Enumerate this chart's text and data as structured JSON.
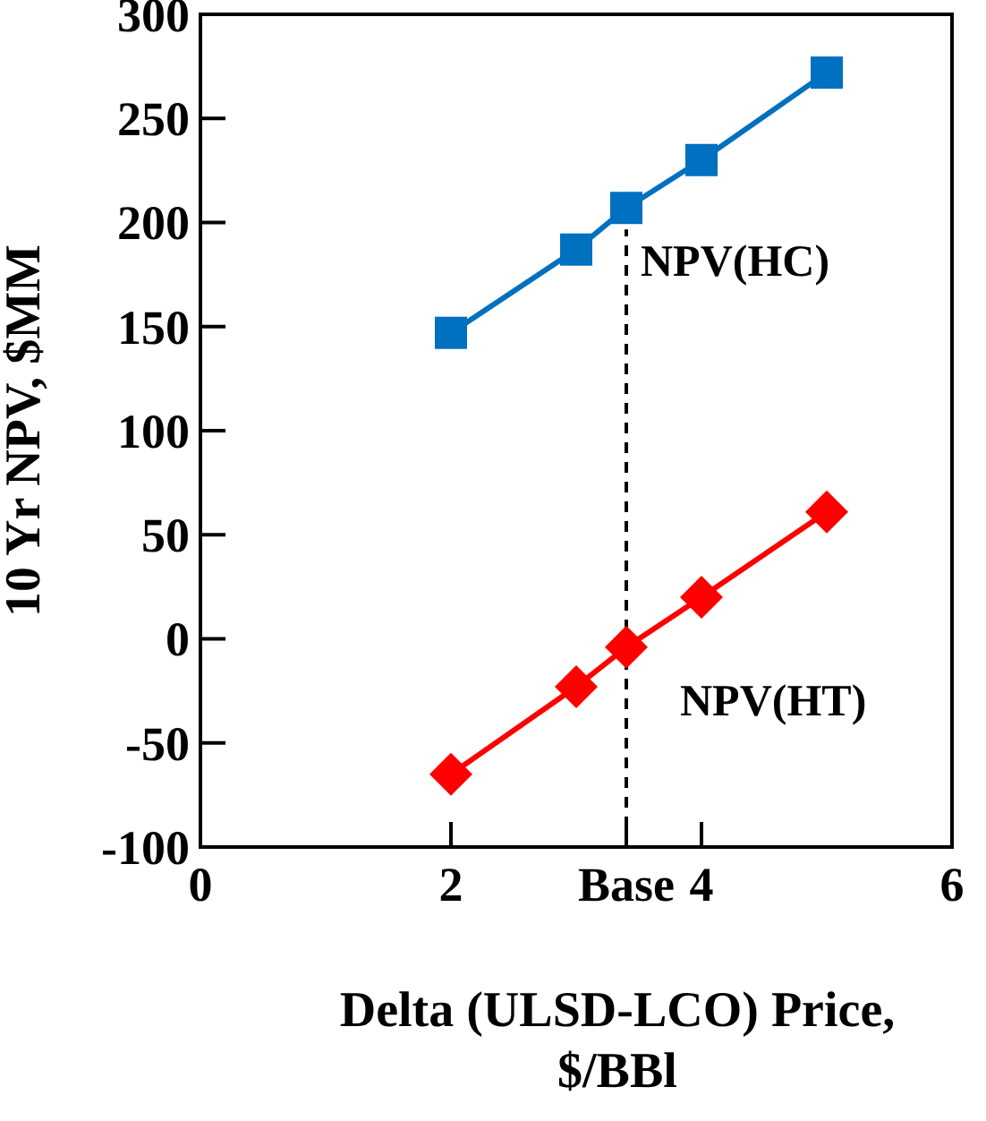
{
  "chart_data": {
    "type": "line",
    "xlabel": "Delta (ULSD-LCO) Price,\n$/BBl",
    "ylabel": "10 Yr NPV, $MM",
    "xlim": [
      0,
      6
    ],
    "xticks": [
      0,
      2,
      {
        "value": 3.4,
        "label": "Base"
      },
      4,
      6
    ],
    "ylim": [
      -100,
      300
    ],
    "yticks": [
      -100,
      -50,
      0,
      50,
      100,
      150,
      200,
      250,
      300
    ],
    "series": [
      {
        "name": "NPV(HC)",
        "color": "#0070c0",
        "marker": "square",
        "x": [
          2,
          3,
          3.4,
          4,
          5
        ],
        "values": [
          147,
          187,
          207,
          230,
          272
        ]
      },
      {
        "name": "NPV(HT)",
        "color": "#ff0000",
        "marker": "diamond",
        "x": [
          2,
          3,
          3.4,
          4,
          5
        ],
        "values": [
          -65,
          -23,
          -4,
          20,
          61
        ]
      }
    ],
    "ref_lines": [
      {
        "axis": "x",
        "value": 3.4,
        "line_style": "dashed",
        "color": "#000000"
      }
    ],
    "grid": false,
    "line_style": "solid"
  }
}
